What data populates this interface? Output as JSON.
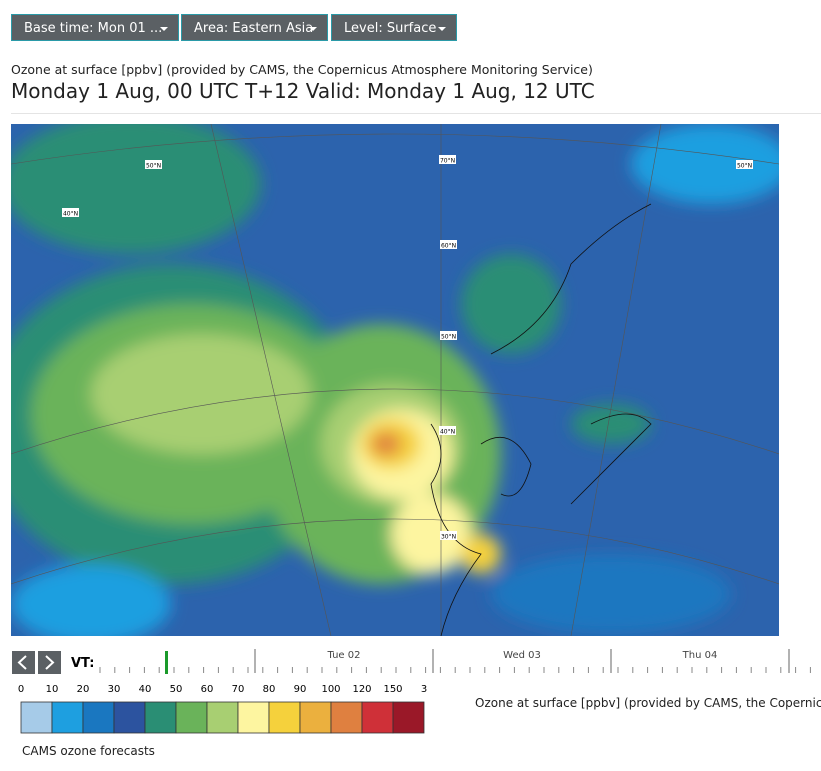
{
  "toolbar": {
    "buttons": [
      "Base time: Mon 01 ...",
      "Area: Eastern Asia",
      "Level: Surface"
    ]
  },
  "header": {
    "subtitle": "Ozone at surface [ppbv] (provided by CAMS, the Copernicus Atmosphere Monitoring Service)",
    "title": "Monday 1 Aug, 00 UTC T+12 Valid: Monday 1 Aug, 12 UTC"
  },
  "map": {
    "labels": [
      "50°N",
      "70°N",
      "50°N",
      "40°N",
      "60°N",
      "50°N",
      "40°N",
      "30°N"
    ]
  },
  "timeline": {
    "label": "VT:",
    "days": [
      "Tue 02",
      "Wed 03",
      "Thu 04"
    ]
  },
  "legend": {
    "ticks": [
      "0",
      "10",
      "20",
      "30",
      "40",
      "50",
      "60",
      "70",
      "80",
      "90",
      "100",
      "120",
      "150",
      "3"
    ],
    "colors": [
      "#a6cbe8",
      "#1e9fe0",
      "#1a77c0",
      "#2c539f",
      "#2a8e74",
      "#6ab35a",
      "#a8cf72",
      "#fdf5a0",
      "#f5d13c",
      "#ebb03e",
      "#df8040",
      "#cf3038",
      "#9a1828"
    ],
    "caption": "Ozone at surface [ppbv] (provided by CAMS, the Copernicus A",
    "footer": "CAMS ozone forecasts"
  }
}
